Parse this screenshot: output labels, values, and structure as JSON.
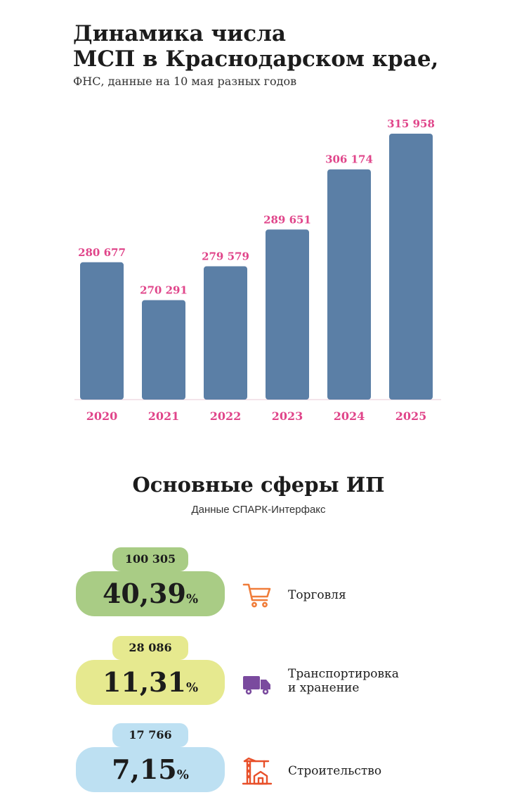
{
  "header": {
    "title_line1": "Динамика числа",
    "title_line2": "МСП в Краснодарском крае,",
    "subtitle": "ФНС, данные на 10 мая разных годов"
  },
  "chart_data": {
    "type": "bar",
    "categories": [
      "2020",
      "2021",
      "2022",
      "2023",
      "2024",
      "2025"
    ],
    "values": [
      280677,
      270291,
      279579,
      289651,
      306174,
      315958
    ],
    "value_labels": [
      "280 677",
      "270 291",
      "279 579",
      "289 651",
      "306 174",
      "315 958"
    ],
    "title": "Динамика числа МСП в Краснодарском крае,",
    "subtitle": "ФНС, данные на 10 мая разных годов",
    "xlabel": "",
    "ylabel": "",
    "grid": false,
    "colors": {
      "bar": "#5b7fa6",
      "label": "#e0458a"
    }
  },
  "spheres": {
    "title": "Основные сферы ИП",
    "source": "Данные СПАРК-Интерфакс",
    "items": [
      {
        "count": "100 305",
        "percent": "40,39",
        "percent_sign": "%",
        "label_line1": "Торговля",
        "label_line2": "",
        "icon": "shopping-cart-icon",
        "color_small": "#a9cc85",
        "color_big": "#a9cc85"
      },
      {
        "count": "28 086",
        "percent": "11,31",
        "percent_sign": "%",
        "label_line1": "Транспортировка",
        "label_line2": "и хранение",
        "icon": "delivery-truck-icon",
        "color_small": "#e6e98f",
        "color_big": "#e6e98f"
      },
      {
        "count": "17 766",
        "percent": "7,15",
        "percent_sign": "%",
        "label_line1": "Строительство",
        "label_line2": "",
        "icon": "construction-crane-icon",
        "color_small": "#bde0f2",
        "color_big": "#bde0f2"
      }
    ]
  }
}
